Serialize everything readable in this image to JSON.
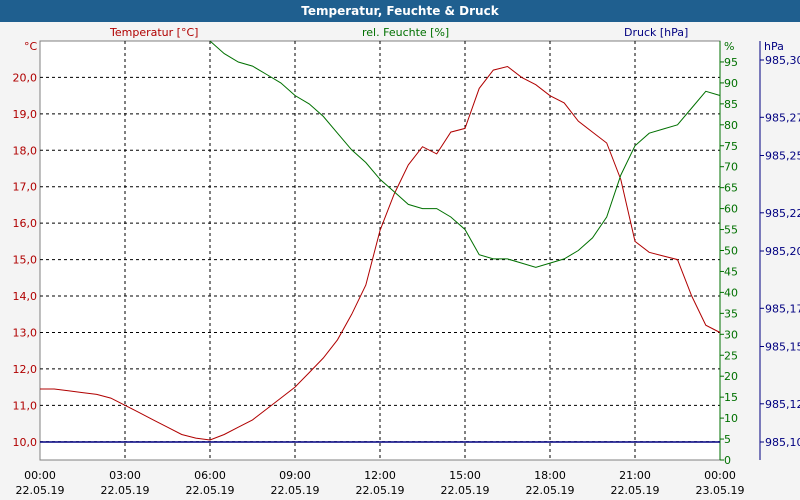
{
  "title": "Temperatur, Feuchte & Druck",
  "colors": {
    "temperature": "#b00000",
    "humidity": "#007000",
    "pressure": "#000080",
    "titlebar": "#1f5f8f"
  },
  "chart_data": {
    "type": "line",
    "title": "Temperatur, Feuchte & Druck",
    "grid": true,
    "x_axis": {
      "range": [
        "22.05.19 00:00",
        "23.05.19 00:00"
      ],
      "ticks": [
        {
          "time": "00:00",
          "date": "22.05.19"
        },
        {
          "time": "03:00",
          "date": "22.05.19"
        },
        {
          "time": "06:00",
          "date": "22.05.19"
        },
        {
          "time": "09:00",
          "date": "22.05.19"
        },
        {
          "time": "12:00",
          "date": "22.05.19"
        },
        {
          "time": "15:00",
          "date": "22.05.19"
        },
        {
          "time": "18:00",
          "date": "22.05.19"
        },
        {
          "time": "21:00",
          "date": "22.05.19"
        },
        {
          "time": "00:00",
          "date": "23.05.19"
        }
      ]
    },
    "axes": {
      "left": {
        "label": "Temperatur [°C]",
        "unit": "°C",
        "ylim": [
          9.5,
          21.0
        ],
        "ticks": [
          "10,0",
          "11,0",
          "12,0",
          "13,0",
          "14,0",
          "15,0",
          "16,0",
          "17,0",
          "18,0",
          "19,0",
          "20,0"
        ],
        "tick_values": [
          10,
          11,
          12,
          13,
          14,
          15,
          16,
          17,
          18,
          19,
          20
        ]
      },
      "humidity": {
        "label": "rel. Feuchte [%]",
        "unit": "%",
        "ylim": [
          0,
          100
        ],
        "ticks": [
          "0",
          "5",
          "10",
          "15",
          "20",
          "25",
          "30",
          "35",
          "40",
          "45",
          "50",
          "55",
          "60",
          "65",
          "70",
          "75",
          "80",
          "85",
          "90",
          "95"
        ],
        "tick_values": [
          0,
          5,
          10,
          15,
          20,
          25,
          30,
          35,
          40,
          45,
          50,
          55,
          60,
          65,
          70,
          75,
          80,
          85,
          90,
          95
        ]
      },
      "pressure": {
        "label": "Druck [hPa]",
        "unit": "hPa",
        "ticks": [
          "985,10",
          "985,12",
          "985,15",
          "985,17",
          "985,20",
          "985,22",
          "985,25",
          "985,27",
          "985,30"
        ]
      }
    },
    "series": [
      {
        "name": "Temperatur [°C]",
        "axis": "left",
        "color": "#b00000",
        "x": [
          "00:00",
          "00:30",
          "01:00",
          "01:30",
          "02:00",
          "02:30",
          "03:00",
          "03:30",
          "04:00",
          "04:30",
          "05:00",
          "05:30",
          "06:00",
          "06:30",
          "07:00",
          "07:30",
          "08:00",
          "08:30",
          "09:00",
          "09:30",
          "10:00",
          "10:30",
          "11:00",
          "11:30",
          "12:00",
          "12:30",
          "13:00",
          "13:30",
          "14:00",
          "14:30",
          "15:00",
          "15:30",
          "16:00",
          "16:30",
          "17:00",
          "17:30",
          "18:00",
          "18:30",
          "19:00",
          "19:30",
          "20:00",
          "20:30",
          "21:00",
          "21:30",
          "22:00",
          "22:30",
          "23:00",
          "23:30",
          "24:00"
        ],
        "values": [
          11.45,
          11.45,
          11.4,
          11.35,
          11.3,
          11.2,
          11.0,
          10.8,
          10.6,
          10.4,
          10.2,
          10.1,
          10.05,
          10.2,
          10.4,
          10.6,
          10.9,
          11.2,
          11.5,
          11.9,
          12.3,
          12.8,
          13.5,
          14.3,
          15.8,
          16.8,
          17.6,
          18.1,
          17.9,
          18.5,
          18.6,
          19.7,
          20.2,
          20.3,
          20.0,
          19.8,
          19.5,
          19.3,
          18.8,
          18.5,
          18.2,
          17.2,
          15.5,
          15.2,
          15.1,
          15.0,
          14.0,
          13.2,
          13.0
        ]
      },
      {
        "name": "rel. Feuchte [%]",
        "axis": "humidity",
        "color": "#007000",
        "x": [
          "06:00",
          "06:30",
          "07:00",
          "07:30",
          "08:00",
          "08:30",
          "09:00",
          "09:30",
          "10:00",
          "10:30",
          "11:00",
          "11:30",
          "12:00",
          "12:30",
          "13:00",
          "13:30",
          "14:00",
          "14:30",
          "15:00",
          "15:30",
          "16:00",
          "16:30",
          "17:00",
          "17:30",
          "18:00",
          "18:30",
          "19:00",
          "19:30",
          "20:00",
          "20:30",
          "21:00",
          "21:30",
          "22:00",
          "22:30",
          "23:00",
          "23:30",
          "24:00"
        ],
        "values": [
          100,
          97,
          95,
          94,
          92,
          90,
          87,
          85,
          82,
          78,
          74,
          71,
          67,
          64,
          61,
          60,
          60,
          58,
          55,
          49,
          48,
          48,
          47,
          46,
          47,
          48,
          50,
          53,
          58,
          68,
          75,
          78,
          79,
          80,
          84,
          88,
          87
        ]
      },
      {
        "name": "Druck [hPa]",
        "axis": "pressure",
        "color": "#000080",
        "x": [
          "00:00",
          "24:00"
        ],
        "values": [
          985.1,
          985.1
        ]
      }
    ]
  }
}
